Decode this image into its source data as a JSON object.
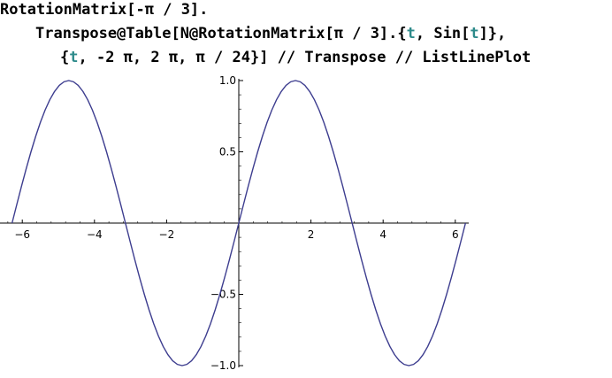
{
  "notebook": {
    "input_lines": [
      [
        {
          "text": "RotationMatrix[-π / 3]."
        }
      ],
      [
        {
          "text": "Transpose@Table[N@RotationMatrix[π / 3].{"
        },
        {
          "text": "t",
          "symbol": true
        },
        {
          "text": ", Sin["
        },
        {
          "text": "t",
          "symbol": true
        },
        {
          "text": "]},"
        }
      ],
      [
        {
          "text": "{"
        },
        {
          "text": "t",
          "symbol": true
        },
        {
          "text": ", -2 π, 2 π, π / 24}] // Transpose // ListLinePlot"
        }
      ]
    ]
  },
  "chart_data": {
    "type": "line",
    "title": "",
    "xlabel": "",
    "ylabel": "",
    "xlim": [
      -6.45,
      6.2
    ],
    "ylim": [
      -1.0,
      1.0
    ],
    "x_ticks": [
      -6,
      -4,
      -2,
      2,
      4,
      6
    ],
    "x_tick_labels": [
      "−6",
      "−4",
      "−2",
      "2",
      "4",
      "6"
    ],
    "y_ticks": [
      1.0,
      0.5,
      -0.5,
      -1.0
    ],
    "y_tick_labels": [
      "1.0",
      "0.5",
      "−0.5",
      "−1.0"
    ],
    "grid": false,
    "line_color": "#3d3d8f",
    "series": [
      {
        "function": "sin(x)",
        "x_start": -6.2832,
        "x_end": 6.2832,
        "step": 0.1309
      }
    ]
  }
}
